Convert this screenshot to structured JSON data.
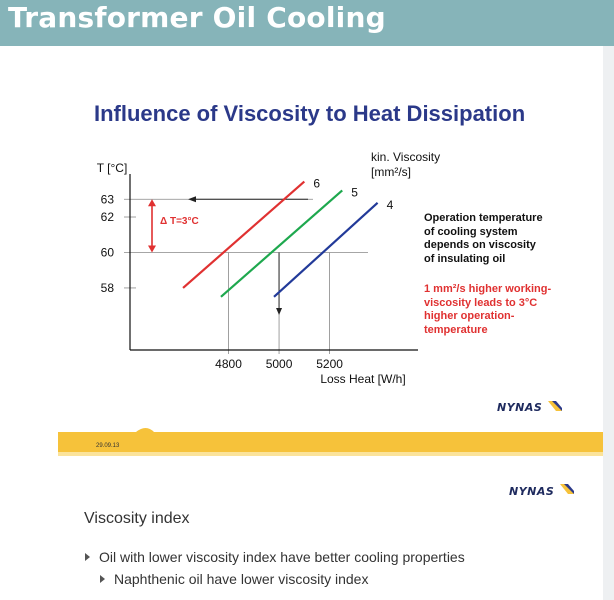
{
  "header": {
    "title": "Transformer Oil Cooling"
  },
  "slide1": {
    "title": "Influence of Viscosity to Heat Dissipation",
    "annotation_black": [
      "Operation temperature",
      "of cooling system",
      "depends on viscosity",
      "of insulating oil"
    ],
    "annotation_red": [
      "1 mm²/s higher working-",
      "viscosity leads to 3°C",
      "higher  operation-",
      "temperature"
    ],
    "delta_label": "Δ T=3°C",
    "logo": "NYNAS",
    "date": "29.09.13"
  },
  "slide2": {
    "logo": "NYNAS",
    "section_title": "Viscosity index",
    "bullets": [
      "Oil with lower viscosity index have better cooling properties",
      "Naphthenic oil have lower viscosity index"
    ]
  },
  "chart_data": {
    "type": "line",
    "ylabel": "T [°C]",
    "xlabel": "Loss Heat  [W/h]",
    "legend_title": [
      "kin. Viscosity",
      "[mm²/s]"
    ],
    "x_ticks": [
      4800,
      5000,
      5200
    ],
    "y_ticks": [
      58,
      60,
      62,
      63
    ],
    "xlim": [
      4410,
      5550
    ],
    "ylim": [
      54.5,
      64.2
    ],
    "grid": "partial",
    "series": [
      {
        "name": "6",
        "color": "#e03131",
        "x": [
          4620,
          5100
        ],
        "y": [
          58.0,
          64.0
        ]
      },
      {
        "name": "5",
        "color": "#1ea84e",
        "x": [
          4770,
          5250
        ],
        "y": [
          57.5,
          63.5
        ]
      },
      {
        "name": "4",
        "color": "#223a99",
        "x": [
          4980,
          5390
        ],
        "y": [
          57.5,
          62.8
        ]
      }
    ]
  },
  "colors": {
    "header": "#86b4b9",
    "title_blue": "#2b3989",
    "band_yellow": "#f6c23a",
    "accent_red": "#e03131"
  }
}
